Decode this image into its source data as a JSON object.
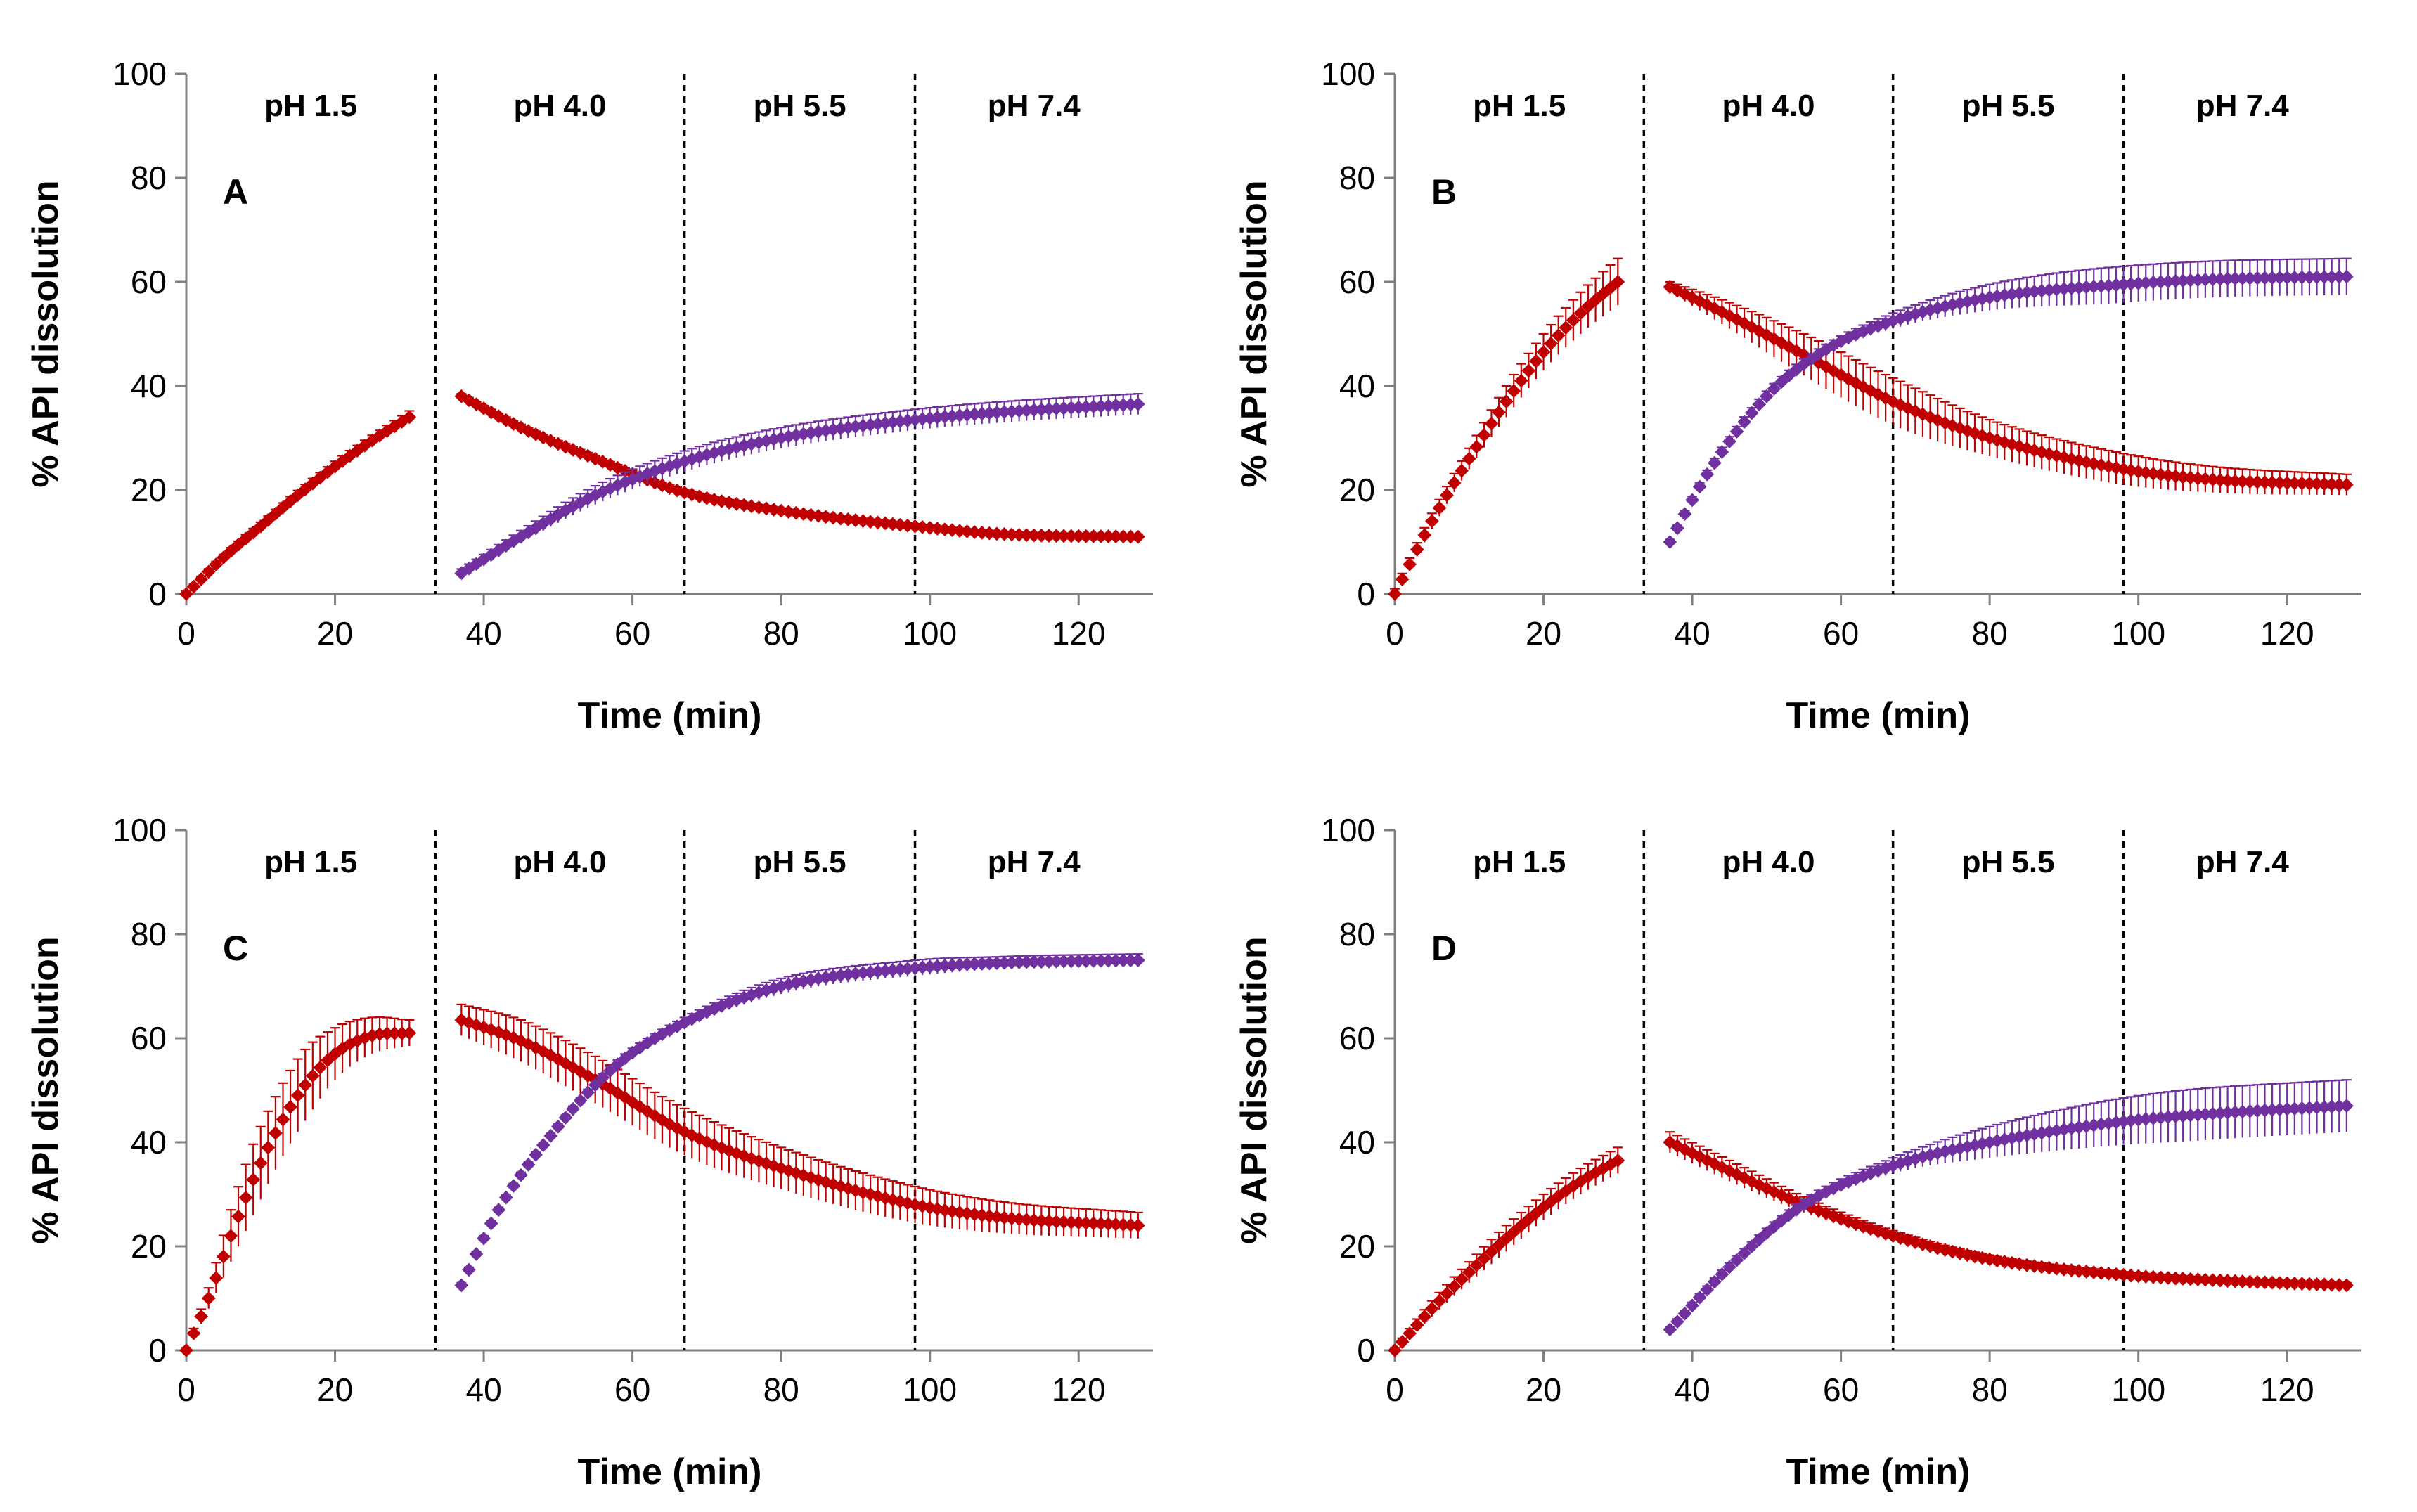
{
  "colors": {
    "red": "#c00000",
    "purple": "#7030a0",
    "axis": "#7f7f7f"
  },
  "chart_data": [
    {
      "type": "line",
      "panel": "A",
      "xlabel": "Time (min)",
      "ylabel": "% API dissolution",
      "xlim": [
        0,
        130
      ],
      "ylim": [
        0,
        100
      ],
      "xticks": [
        "0",
        "20",
        "40",
        "60",
        "80",
        "100",
        "120"
      ],
      "yticks": [
        "0",
        "20",
        "40",
        "60",
        "80",
        "100"
      ],
      "phases": [
        {
          "label": "pH 1.5",
          "start": 0,
          "end": 33.5
        },
        {
          "label": "pH 4.0",
          "start": 33.5,
          "end": 67
        },
        {
          "label": "pH 5.5",
          "start": 67,
          "end": 98
        },
        {
          "label": "pH 7.4",
          "start": 98,
          "end": 130
        }
      ],
      "series": [
        {
          "name": "red-stage1",
          "color": "red",
          "x": [
            0,
            5,
            10,
            15,
            20,
            25,
            30
          ],
          "y": [
            0,
            7,
            13,
            19,
            24.5,
            29.5,
            34
          ],
          "err": [
            0.5,
            0.6,
            0.8,
            0.9,
            1.0,
            1.0,
            1.2
          ]
        },
        {
          "name": "red-stage2",
          "color": "red",
          "x": [
            37,
            45,
            55,
            67,
            80,
            98,
            110,
            128
          ],
          "y": [
            38,
            32,
            26,
            19.5,
            16,
            13,
            11.5,
            11
          ],
          "err": [
            0.5,
            0.6,
            0.6,
            0.6,
            0.5,
            0.5,
            0.5,
            0.5
          ]
        },
        {
          "name": "purple",
          "color": "purple",
          "x": [
            37,
            45,
            55,
            67,
            80,
            98,
            110,
            128
          ],
          "y": [
            4,
            11,
            19,
            25.5,
            30,
            33.5,
            35,
            36.5
          ],
          "err": [
            0.8,
            1.2,
            1.8,
            2.0,
            2.0,
            2.0,
            2.0,
            2.0
          ]
        }
      ]
    },
    {
      "type": "line",
      "panel": "B",
      "xlabel": "Time (min)",
      "ylabel": "% API dissolution",
      "xlim": [
        0,
        130
      ],
      "ylim": [
        0,
        100
      ],
      "xticks": [
        "0",
        "20",
        "40",
        "60",
        "80",
        "100",
        "120"
      ],
      "yticks": [
        "0",
        "20",
        "40",
        "60",
        "80",
        "100"
      ],
      "phases": [
        {
          "label": "pH 1.5",
          "start": 0,
          "end": 33.5
        },
        {
          "label": "pH 4.0",
          "start": 33.5,
          "end": 67
        },
        {
          "label": "pH 5.5",
          "start": 67,
          "end": 98
        },
        {
          "label": "pH 7.4",
          "start": 98,
          "end": 130
        }
      ],
      "series": [
        {
          "name": "red-stage1",
          "color": "red",
          "x": [
            0,
            5,
            10,
            15,
            20,
            25,
            30
          ],
          "y": [
            0,
            14,
            26,
            37,
            46.5,
            54,
            60
          ],
          "err": [
            1.0,
            1.5,
            2.0,
            3.0,
            3.5,
            4.0,
            4.5
          ]
        },
        {
          "name": "red-stage2",
          "color": "red",
          "x": [
            37,
            45,
            55,
            67,
            80,
            98,
            110,
            128
          ],
          "y": [
            59,
            53.5,
            46,
            37,
            30,
            24,
            22,
            21
          ],
          "err": [
            1.0,
            2.5,
            4.0,
            4.5,
            3.5,
            3.0,
            2.5,
            2.0
          ]
        },
        {
          "name": "purple",
          "color": "purple",
          "x": [
            37,
            42,
            50,
            58,
            67,
            80,
            98,
            110,
            128
          ],
          "y": [
            10,
            23,
            38,
            47,
            52.5,
            57,
            59.5,
            60.5,
            61
          ],
          "err": [
            0.5,
            0.8,
            1.0,
            1.0,
            1.5,
            2.5,
            3.5,
            3.5,
            3.5
          ]
        }
      ]
    },
    {
      "type": "line",
      "panel": "C",
      "xlabel": "Time (min)",
      "ylabel": "% API dissolution",
      "xlim": [
        0,
        130
      ],
      "ylim": [
        0,
        100
      ],
      "xticks": [
        "0",
        "20",
        "40",
        "60",
        "80",
        "100",
        "120"
      ],
      "yticks": [
        "0",
        "20",
        "40",
        "60",
        "80",
        "100"
      ],
      "phases": [
        {
          "label": "pH 1.5",
          "start": 0,
          "end": 33.5
        },
        {
          "label": "pH 4.0",
          "start": 33.5,
          "end": 67
        },
        {
          "label": "pH 5.5",
          "start": 67,
          "end": 98
        },
        {
          "label": "pH 7.4",
          "start": 98,
          "end": 130
        }
      ],
      "series": [
        {
          "name": "red-stage1",
          "color": "red",
          "x": [
            0,
            3,
            6,
            10,
            15,
            20,
            25,
            30
          ],
          "y": [
            0,
            10,
            22,
            36,
            49,
            57,
            60.5,
            61
          ],
          "err": [
            0.5,
            2.0,
            5.0,
            7.0,
            7.0,
            5.0,
            3.5,
            2.5
          ]
        },
        {
          "name": "red-stage2",
          "color": "red",
          "x": [
            37,
            45,
            55,
            67,
            80,
            98,
            110,
            128
          ],
          "y": [
            63.5,
            59.5,
            52,
            42,
            35,
            28,
            25.5,
            24
          ],
          "err": [
            3.0,
            4.0,
            4.5,
            4.5,
            4.0,
            3.5,
            3.0,
            2.5
          ]
        },
        {
          "name": "purple",
          "color": "purple",
          "x": [
            37,
            42,
            50,
            58,
            67,
            80,
            98,
            110,
            128
          ],
          "y": [
            12.5,
            27,
            43,
            55,
            63,
            70,
            73.5,
            74.5,
            75
          ],
          "err": [
            0.5,
            0.5,
            0.5,
            0.8,
            1.0,
            1.5,
            1.5,
            1.2,
            1.2
          ]
        }
      ]
    },
    {
      "type": "line",
      "panel": "D",
      "xlabel": "Time (min)",
      "ylabel": "% API dissolution",
      "xlim": [
        0,
        130
      ],
      "ylim": [
        0,
        100
      ],
      "xticks": [
        "0",
        "20",
        "40",
        "60",
        "80",
        "100",
        "120"
      ],
      "yticks": [
        "0",
        "20",
        "40",
        "60",
        "80",
        "100"
      ],
      "phases": [
        {
          "label": "pH 1.5",
          "start": 0,
          "end": 33.5
        },
        {
          "label": "pH 4.0",
          "start": 33.5,
          "end": 67
        },
        {
          "label": "pH 5.5",
          "start": 67,
          "end": 98
        },
        {
          "label": "pH 7.4",
          "start": 98,
          "end": 130
        }
      ],
      "series": [
        {
          "name": "red-stage1",
          "color": "red",
          "x": [
            0,
            5,
            10,
            15,
            20,
            25,
            30
          ],
          "y": [
            0,
            8,
            15,
            21.5,
            27.5,
            32.5,
            36.5
          ],
          "err": [
            0.5,
            1.5,
            2.0,
            2.5,
            2.5,
            2.5,
            2.5
          ]
        },
        {
          "name": "red-stage2",
          "color": "red",
          "x": [
            37,
            45,
            55,
            67,
            80,
            98,
            110,
            128
          ],
          "y": [
            40,
            34.5,
            28,
            22,
            17.5,
            14.5,
            13.5,
            12.5
          ],
          "err": [
            2.0,
            2.0,
            1.5,
            1.0,
            0.8,
            0.6,
            0.5,
            0.5
          ]
        },
        {
          "name": "purple",
          "color": "purple",
          "x": [
            37,
            45,
            55,
            67,
            80,
            98,
            110,
            128
          ],
          "y": [
            4,
            16,
            28,
            35.5,
            40,
            44,
            45.5,
            47
          ],
          "err": [
            0.5,
            0.8,
            1.0,
            1.5,
            3.0,
            4.5,
            5.0,
            5.0
          ]
        }
      ]
    }
  ]
}
